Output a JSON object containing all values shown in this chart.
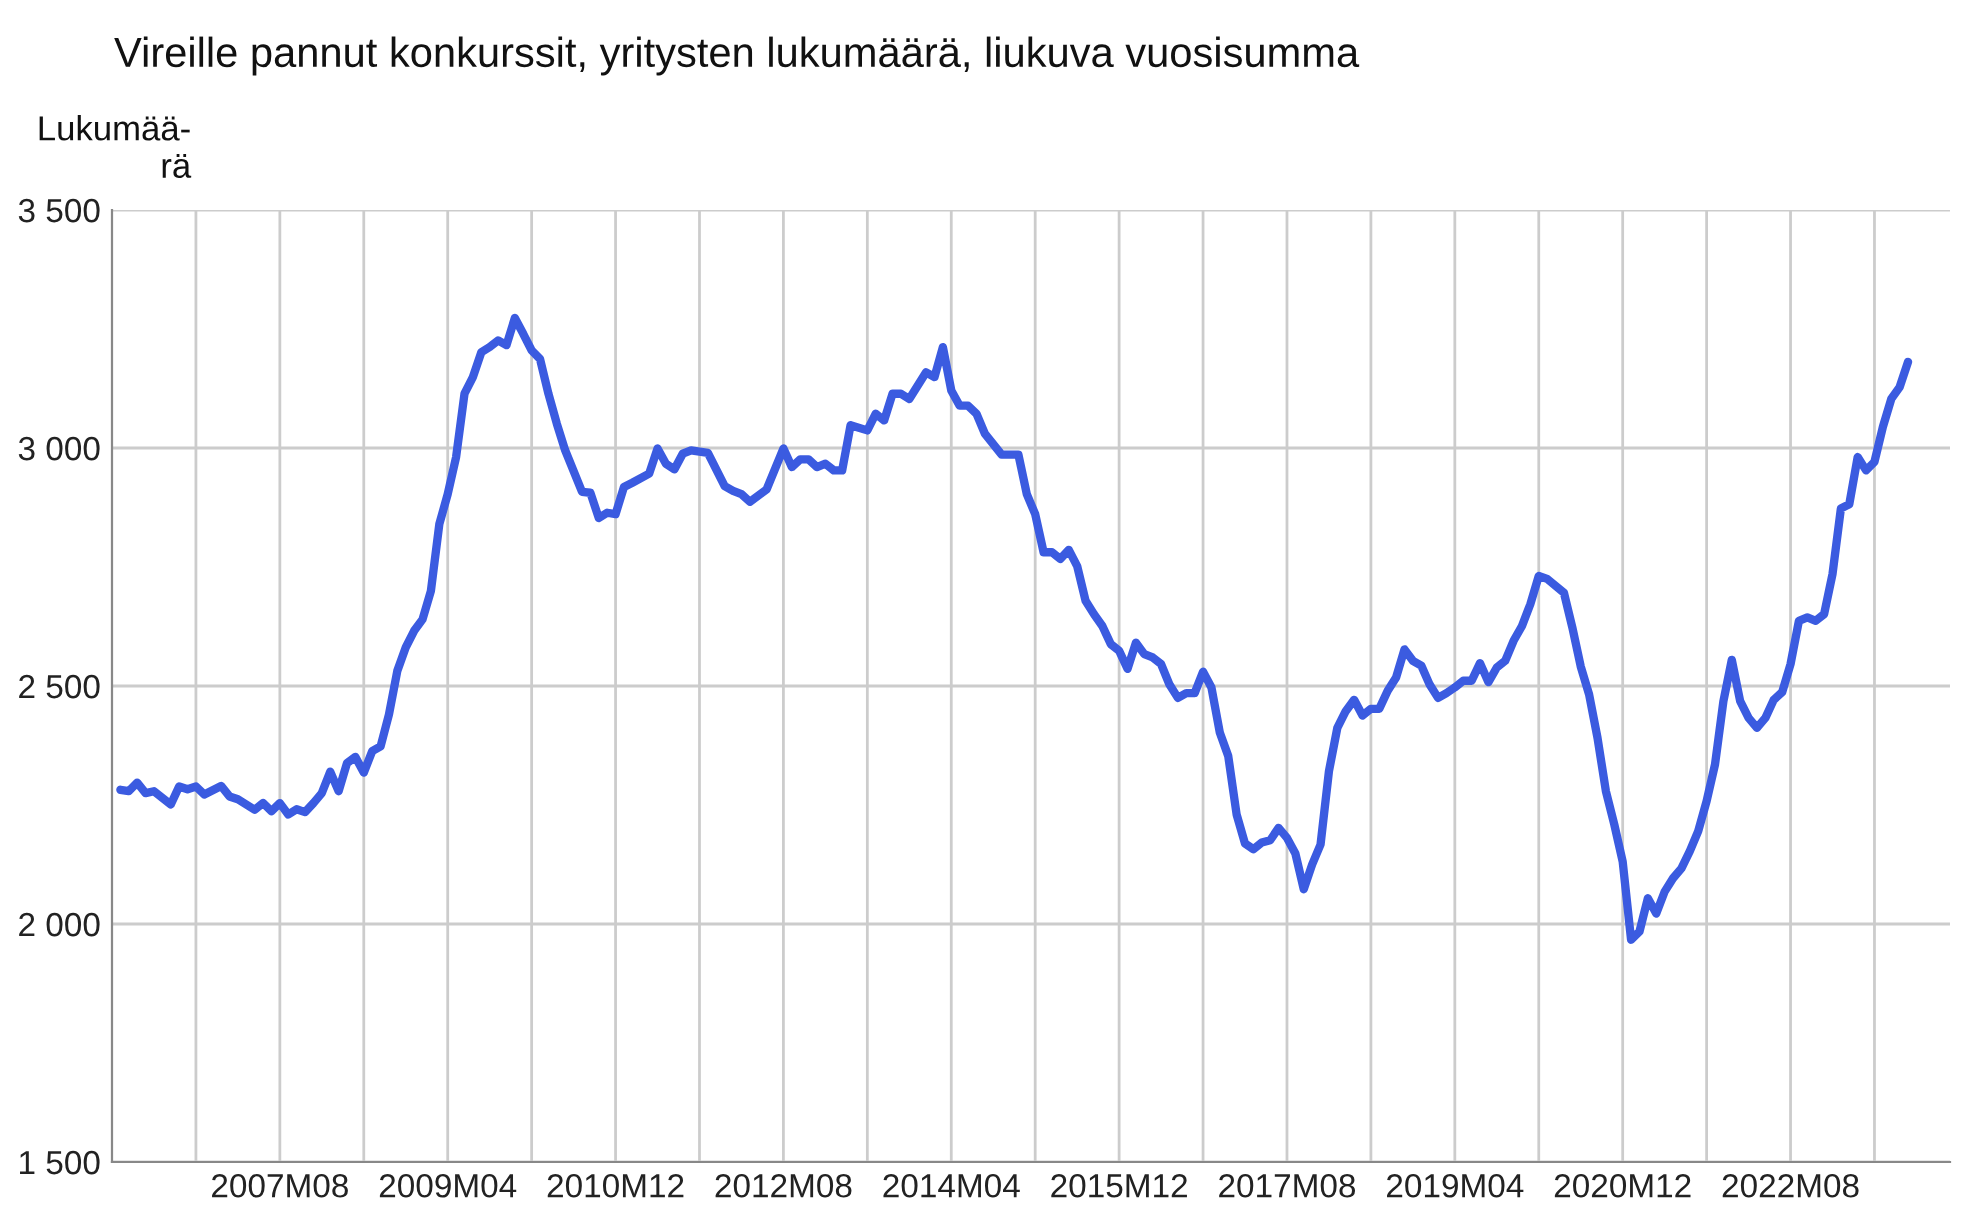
{
  "chart_data": {
    "type": "line",
    "title": "Vireille pannut konkurssit, yritysten lukumäärä, liukuva vuosisumma",
    "ylabel": "Lukumää-\nrä",
    "grid": true,
    "marker": "none",
    "line_style": "solid",
    "xlim": [
      "2005-12",
      "2024-03"
    ],
    "ylim": [
      1500,
      3500
    ],
    "xticks": [
      {
        "value": "2006-10",
        "label": null
      },
      {
        "value": "2007-08",
        "label": "2007M08"
      },
      {
        "value": "2008-06",
        "label": null
      },
      {
        "value": "2009-04",
        "label": "2009M04"
      },
      {
        "value": "2010-02",
        "label": null
      },
      {
        "value": "2010-12",
        "label": "2010M12"
      },
      {
        "value": "2011-10",
        "label": null
      },
      {
        "value": "2012-08",
        "label": "2012M08"
      },
      {
        "value": "2013-06",
        "label": null
      },
      {
        "value": "2014-04",
        "label": "2014M04"
      },
      {
        "value": "2015-02",
        "label": null
      },
      {
        "value": "2015-12",
        "label": "2015M12"
      },
      {
        "value": "2016-10",
        "label": null
      },
      {
        "value": "2017-08",
        "label": "2017M08"
      },
      {
        "value": "2018-06",
        "label": null
      },
      {
        "value": "2019-04",
        "label": "2019M04"
      },
      {
        "value": "2020-02",
        "label": null
      },
      {
        "value": "2020-12",
        "label": "2020M12"
      },
      {
        "value": "2021-10",
        "label": null
      },
      {
        "value": "2022-08",
        "label": "2022M08"
      },
      {
        "value": "2023-06",
        "label": null
      }
    ],
    "yticks": [
      {
        "value": 1500,
        "label": "1 500"
      },
      {
        "value": 2000,
        "label": "2 000"
      },
      {
        "value": 2500,
        "label": "2 500"
      },
      {
        "value": 3000,
        "label": "3 000"
      },
      {
        "value": 3500,
        "label": "3 500"
      }
    ],
    "series": [
      {
        "color": "#3b5be0",
        "x": [
          "2006-01",
          "2006-02",
          "2006-03",
          "2006-04",
          "2006-05",
          "2006-07",
          "2006-08",
          "2006-09",
          "2006-10",
          "2006-11",
          "2007-01",
          "2007-02",
          "2007-03",
          "2007-05",
          "2007-06",
          "2007-07",
          "2007-08",
          "2007-09",
          "2007-10",
          "2007-11",
          "2007-12",
          "2008-01",
          "2008-02",
          "2008-03",
          "2008-04",
          "2008-05",
          "2008-06",
          "2008-07",
          "2008-08",
          "2008-09",
          "2008-10",
          "2008-11",
          "2008-12",
          "2009-01",
          "2009-02",
          "2009-03",
          "2009-04",
          "2009-05",
          "2009-06",
          "2009-07",
          "2009-08",
          "2009-09",
          "2009-10",
          "2009-11",
          "2009-12",
          "2010-01",
          "2010-02",
          "2010-03",
          "2010-04",
          "2010-05",
          "2010-06",
          "2010-08",
          "2010-09",
          "2010-10",
          "2010-11",
          "2010-12",
          "2011-01",
          "2011-02",
          "2011-04",
          "2011-05",
          "2011-06",
          "2011-07",
          "2011-08",
          "2011-09",
          "2011-11",
          "2012-01",
          "2012-02",
          "2012-03",
          "2012-04",
          "2012-06",
          "2012-08",
          "2012-09",
          "2012-10",
          "2012-11",
          "2012-12",
          "2013-01",
          "2013-02",
          "2013-03",
          "2013-04",
          "2013-06",
          "2013-07",
          "2013-08",
          "2013-09",
          "2013-10",
          "2013-11",
          "2014-01",
          "2014-02",
          "2014-03",
          "2014-04",
          "2014-05",
          "2014-06",
          "2014-07",
          "2014-08",
          "2014-10",
          "2014-12",
          "2015-01",
          "2015-02",
          "2015-03",
          "2015-04",
          "2015-05",
          "2015-06",
          "2015-07",
          "2015-08",
          "2015-09",
          "2015-10",
          "2015-11",
          "2015-12",
          "2016-01",
          "2016-02",
          "2016-03",
          "2016-04",
          "2016-05",
          "2016-06",
          "2016-07",
          "2016-08",
          "2016-09",
          "2016-10",
          "2016-11",
          "2016-12",
          "2017-01",
          "2017-02",
          "2017-03",
          "2017-04",
          "2017-05",
          "2017-06",
          "2017-07",
          "2017-08",
          "2017-09",
          "2017-10",
          "2017-11",
          "2017-12",
          "2018-01",
          "2018-02",
          "2018-03",
          "2018-04",
          "2018-05",
          "2018-06",
          "2018-07",
          "2018-08",
          "2018-09",
          "2018-10",
          "2018-11",
          "2018-12",
          "2019-01",
          "2019-02",
          "2019-03",
          "2019-04",
          "2019-05",
          "2019-06",
          "2019-07",
          "2019-08",
          "2019-09",
          "2019-10",
          "2019-11",
          "2019-12",
          "2020-01",
          "2020-02",
          "2020-03",
          "2020-05",
          "2020-06",
          "2020-07",
          "2020-08",
          "2020-09",
          "2020-10",
          "2020-11",
          "2020-12",
          "2021-01",
          "2021-02",
          "2021-03",
          "2021-04",
          "2021-05",
          "2021-06",
          "2021-07",
          "2021-08",
          "2021-09",
          "2021-10",
          "2021-11",
          "2021-12",
          "2022-01",
          "2022-02",
          "2022-03",
          "2022-04",
          "2022-05",
          "2022-06",
          "2022-07",
          "2022-08",
          "2022-09",
          "2022-10",
          "2022-11",
          "2022-12",
          "2023-01",
          "2023-02",
          "2023-03",
          "2023-04",
          "2023-05",
          "2023-06",
          "2023-07",
          "2023-08",
          "2023-09",
          "2023-10"
        ],
        "values": [
          2282,
          2279,
          2297,
          2275,
          2279,
          2251,
          2289,
          2283,
          2289,
          2272,
          2290,
          2268,
          2262,
          2240,
          2254,
          2237,
          2254,
          2230,
          2241,
          2235,
          2254,
          2275,
          2320,
          2279,
          2338,
          2351,
          2318,
          2363,
          2373,
          2440,
          2532,
          2581,
          2616,
          2640,
          2700,
          2840,
          2903,
          2981,
          3114,
          3149,
          3201,
          3212,
          3226,
          3216,
          3273,
          3240,
          3205,
          3187,
          3114,
          3051,
          2995,
          2908,
          2906,
          2853,
          2864,
          2861,
          2918,
          2927,
          2946,
          2999,
          2967,
          2955,
          2988,
          2995,
          2990,
          2920,
          2910,
          2903,
          2887,
          2913,
          2999,
          2960,
          2976,
          2976,
          2960,
          2967,
          2953,
          2953,
          3048,
          3037,
          3072,
          3058,
          3114,
          3114,
          3103,
          3159,
          3149,
          3212,
          3121,
          3089,
          3089,
          3072,
          3030,
          2986,
          2986,
          2903,
          2861,
          2781,
          2781,
          2767,
          2786,
          2752,
          2679,
          2651,
          2626,
          2588,
          2574,
          2536,
          2591,
          2567,
          2560,
          2546,
          2503,
          2475,
          2485,
          2485,
          2530,
          2497,
          2402,
          2353,
          2230,
          2169,
          2157,
          2171,
          2176,
          2202,
          2181,
          2148,
          2073,
          2125,
          2167,
          2321,
          2412,
          2447,
          2471,
          2438,
          2452,
          2452,
          2490,
          2518,
          2577,
          2553,
          2543,
          2503,
          2475,
          2485,
          2497,
          2511,
          2511,
          2548,
          2508,
          2539,
          2553,
          2595,
          2626,
          2672,
          2731,
          2725,
          2696,
          2623,
          2541,
          2482,
          2391,
          2279,
          2209,
          2131,
          1967,
          1984,
          2054,
          2022,
          2068,
          2096,
          2117,
          2153,
          2195,
          2258,
          2335,
          2468,
          2555,
          2468,
          2433,
          2412,
          2433,
          2471,
          2487,
          2546,
          2637,
          2644,
          2637,
          2651,
          2735,
          2873,
          2882,
          2981,
          2953,
          2971,
          3044,
          3103,
          3128,
          3181
        ]
      }
    ]
  }
}
